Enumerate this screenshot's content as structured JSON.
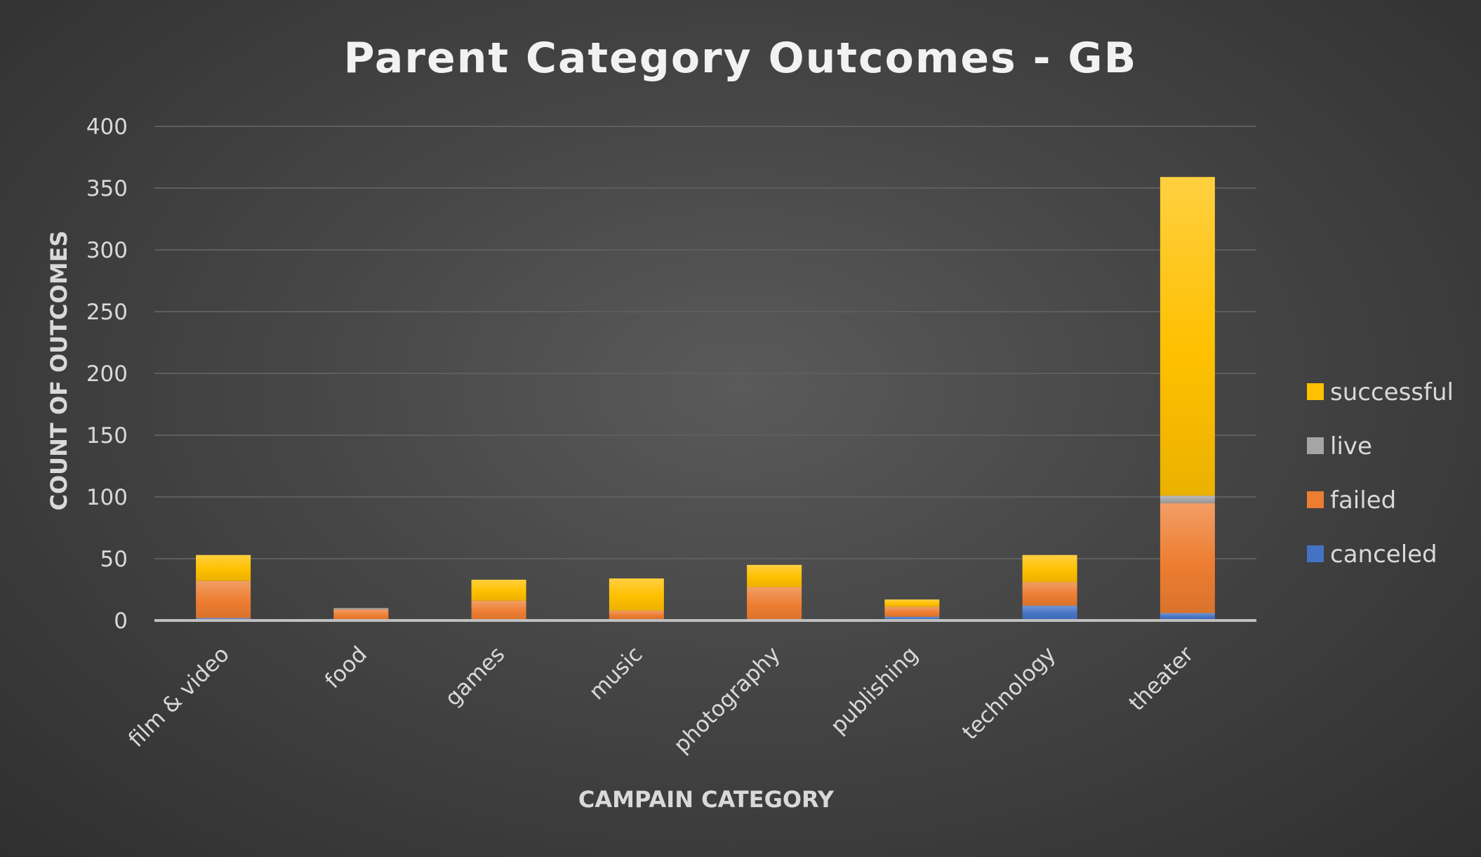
{
  "chart_data": {
    "type": "bar",
    "stacked": true,
    "title": "Parent Category Outcomes  - GB",
    "xlabel": "CAMPAIN CATEGORY",
    "ylabel": "COUNT OF OUTCOMES",
    "ylim": [
      0,
      400
    ],
    "yticks": [
      0,
      50,
      100,
      150,
      200,
      250,
      300,
      350,
      400
    ],
    "grid": true,
    "legend_position": "right",
    "categories": [
      "film & video",
      "food",
      "games",
      "music",
      "photography",
      "publishing",
      "technology",
      "theater"
    ],
    "series": [
      {
        "name": "canceled",
        "color": "#4472c4",
        "values": [
          2,
          0,
          0,
          1,
          0,
          3,
          12,
          6
        ]
      },
      {
        "name": "failed",
        "color": "#ed7d31",
        "values": [
          30,
          9,
          16,
          7,
          27,
          8,
          19,
          89
        ]
      },
      {
        "name": "live",
        "color": "#a5a5a5",
        "values": [
          0,
          1,
          0,
          0,
          0,
          0,
          0,
          6
        ]
      },
      {
        "name": "successful",
        "color": "#ffc000",
        "values": [
          21,
          0,
          17,
          26,
          18,
          6,
          22,
          258
        ]
      }
    ]
  }
}
